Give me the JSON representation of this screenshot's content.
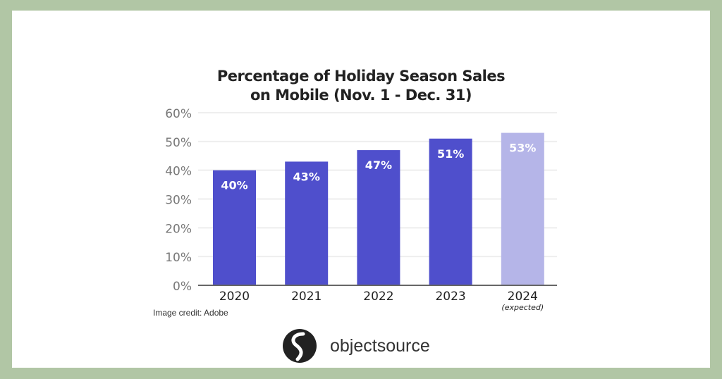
{
  "chart_data": {
    "type": "bar",
    "title_lines": [
      "Percentage of Holiday Season Sales",
      "on Mobile (Nov. 1 - Dec. 31)"
    ],
    "categories": [
      "2020",
      "2021",
      "2022",
      "2023",
      "2024"
    ],
    "category_sublabels": [
      "",
      "",
      "",
      "",
      "(expected)"
    ],
    "values": [
      40,
      43,
      47,
      51,
      53
    ],
    "data_labels": [
      "40%",
      "43%",
      "47%",
      "51%",
      "53%"
    ],
    "yticks": [
      0,
      10,
      20,
      30,
      40,
      50,
      60
    ],
    "ytick_labels": [
      "0%",
      "10%",
      "20%",
      "30%",
      "40%",
      "50%",
      "60%"
    ],
    "ylim": [
      0,
      60
    ],
    "grid": true,
    "colors": {
      "actual": "#4f4fcc",
      "expected": "#b5b5e8"
    }
  },
  "credit": "Image credit: Adobe",
  "logo": {
    "text": "objectsource",
    "icon": "objectsource-logo-icon"
  }
}
